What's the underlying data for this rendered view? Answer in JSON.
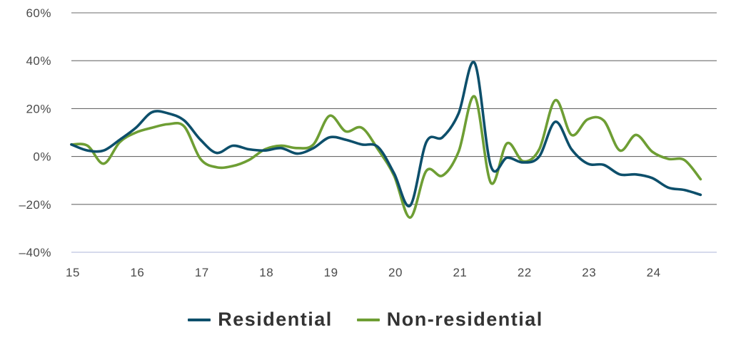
{
  "chart_data": {
    "type": "line",
    "title": "",
    "xlabel": "",
    "ylabel": "",
    "ylim": [
      -40,
      60
    ],
    "xlim": [
      15,
      25
    ],
    "y_ticks": [
      {
        "value": 60,
        "label": "60%"
      },
      {
        "value": 40,
        "label": "40%"
      },
      {
        "value": 20,
        "label": "20%"
      },
      {
        "value": 0,
        "label": "0%"
      },
      {
        "value": -20,
        "label": "–20%"
      },
      {
        "value": -40,
        "label": "–40%"
      }
    ],
    "x_ticks": [
      {
        "value": 15,
        "label": "15"
      },
      {
        "value": 16,
        "label": "16"
      },
      {
        "value": 17,
        "label": "17"
      },
      {
        "value": 18,
        "label": "18"
      },
      {
        "value": 19,
        "label": "19"
      },
      {
        "value": 20,
        "label": "20"
      },
      {
        "value": 21,
        "label": "21"
      },
      {
        "value": 22,
        "label": "22"
      },
      {
        "value": 23,
        "label": "23"
      },
      {
        "value": 24,
        "label": "24"
      }
    ],
    "grid": "horizontal",
    "legend_position": "bottom-center",
    "series": [
      {
        "name": "Residential",
        "color": "#0d4f6b",
        "x": [
          15.0,
          15.25,
          15.5,
          15.75,
          16.0,
          16.25,
          16.5,
          16.75,
          17.0,
          17.25,
          17.5,
          17.75,
          18.0,
          18.25,
          18.5,
          18.75,
          19.0,
          19.25,
          19.5,
          19.75,
          20.0,
          20.25,
          20.5,
          20.75,
          21.0,
          21.25,
          21.5,
          21.75,
          22.0,
          22.25,
          22.5,
          22.75,
          23.0,
          23.25,
          23.5,
          23.75,
          24.0,
          24.25,
          24.5,
          24.75
        ],
        "values": [
          5,
          2.5,
          2.5,
          7,
          12,
          18.5,
          18,
          15,
          7,
          1.5,
          4.5,
          3,
          2.5,
          3.5,
          1.2,
          3.5,
          8,
          7,
          5,
          4,
          -7,
          -20.5,
          6,
          8,
          18,
          39,
          -4,
          -0.5,
          -2.5,
          0,
          14.5,
          3,
          -3,
          -3.5,
          -7.5,
          -7.5,
          -9,
          -13,
          -14,
          -16
        ]
      },
      {
        "name": "Non-residential",
        "color": "#6e9e34",
        "x": [
          15.0,
          15.25,
          15.5,
          15.75,
          16.0,
          16.25,
          16.5,
          16.75,
          17.0,
          17.25,
          17.5,
          17.75,
          18.0,
          18.25,
          18.5,
          18.75,
          19.0,
          19.25,
          19.5,
          19.75,
          20.0,
          20.25,
          20.5,
          20.75,
          21.0,
          21.25,
          21.5,
          21.75,
          22.0,
          22.25,
          22.5,
          22.75,
          23.0,
          23.25,
          23.5,
          23.75,
          24.0,
          24.25,
          24.5,
          24.75
        ],
        "values": [
          5,
          4.5,
          -3,
          6,
          10,
          12,
          13.5,
          12.5,
          -1,
          -4.5,
          -4,
          -1.5,
          3,
          4.5,
          3.5,
          5,
          17,
          10.5,
          12,
          3,
          -8,
          -25.5,
          -6,
          -8,
          2,
          25,
          -11,
          5.5,
          -2,
          3,
          23.5,
          9,
          15.5,
          15,
          2.5,
          9,
          2,
          -1,
          -1.5,
          -9.5
        ]
      }
    ]
  }
}
